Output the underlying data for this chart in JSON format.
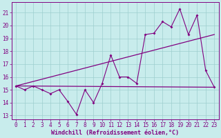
{
  "xlabel": "Windchill (Refroidissement éolien,°C)",
  "xlim": [
    -0.5,
    23.5
  ],
  "ylim": [
    12.7,
    21.8
  ],
  "yticks": [
    13,
    14,
    15,
    16,
    17,
    18,
    19,
    20,
    21
  ],
  "xticks": [
    0,
    1,
    2,
    3,
    4,
    5,
    6,
    7,
    8,
    9,
    10,
    11,
    12,
    13,
    14,
    15,
    16,
    17,
    18,
    19,
    20,
    21,
    22,
    23
  ],
  "bg_color": "#c8ecec",
  "grid_color": "#9ecece",
  "line_color": "#800080",
  "spine_color": "#800080",
  "line1_x": [
    0,
    1,
    2,
    3,
    4,
    5,
    6,
    7,
    8,
    9,
    10,
    11,
    12,
    13,
    14,
    15,
    16,
    17,
    18,
    19,
    20,
    21,
    22,
    23
  ],
  "line1_y": [
    15.3,
    15.0,
    15.3,
    15.0,
    14.7,
    15.0,
    14.1,
    13.1,
    15.0,
    14.0,
    15.5,
    17.7,
    16.0,
    16.0,
    15.5,
    19.3,
    19.4,
    20.3,
    19.9,
    21.3,
    19.3,
    20.8,
    16.5,
    15.2
  ],
  "line2_x": [
    0,
    23
  ],
  "line2_y": [
    15.3,
    19.3
  ],
  "line3_x": [
    0,
    23
  ],
  "line3_y": [
    15.3,
    15.2
  ],
  "tick_fontsize": 5.5,
  "xlabel_fontsize": 6.0
}
